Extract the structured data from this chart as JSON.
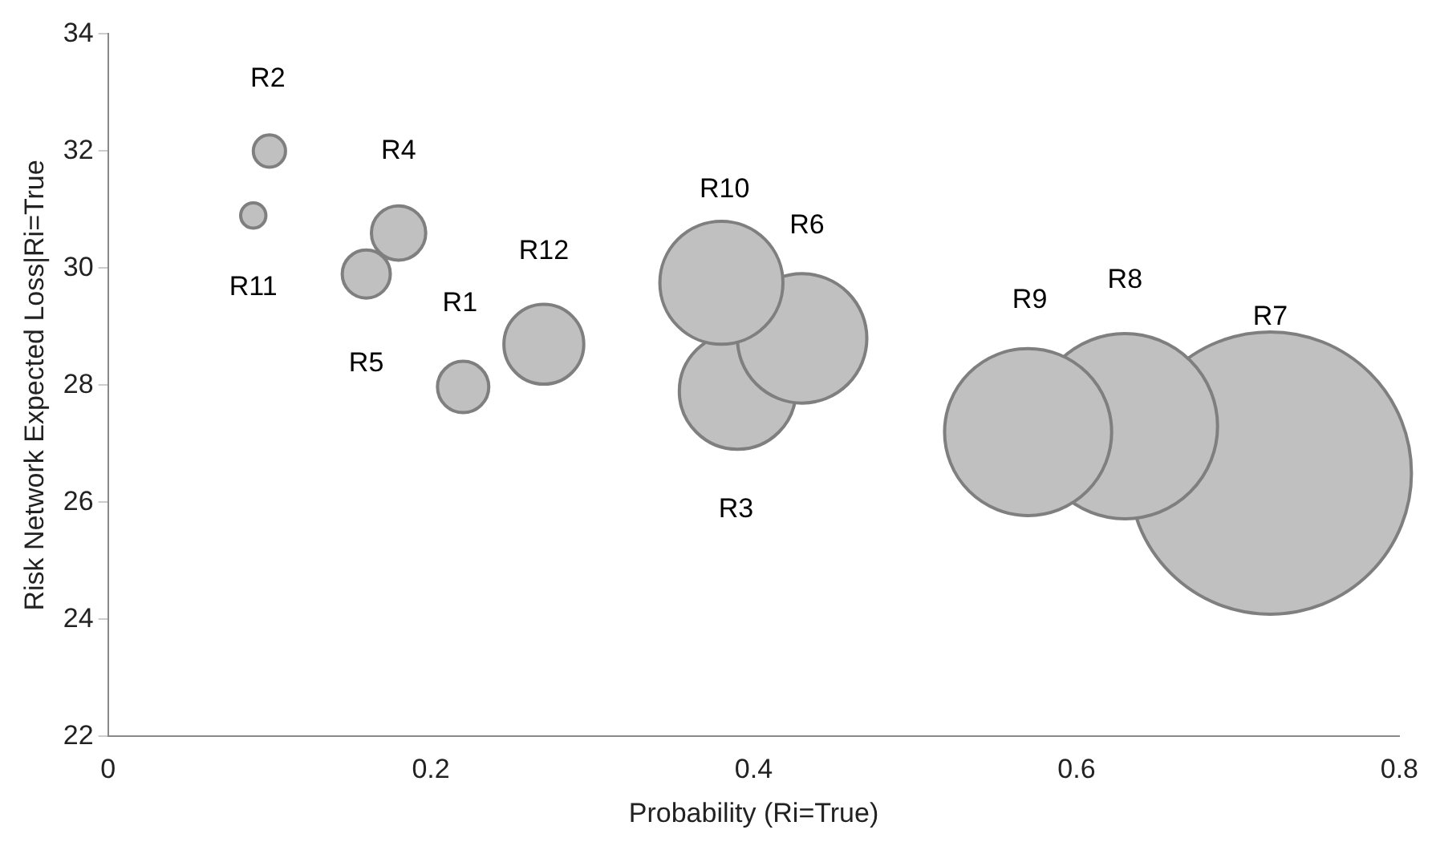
{
  "chart_data": {
    "type": "bubble",
    "xlabel": "Probability (Ri=True)",
    "ylabel": "Risk Network Expected Loss|Ri=True",
    "x": [
      0.22,
      0.1,
      0.39,
      0.18,
      0.16,
      0.43,
      0.72,
      0.63,
      0.57,
      0.38,
      0.09,
      0.27
    ],
    "values": [
      27.97,
      32.0,
      27.9,
      30.6,
      29.9,
      28.8,
      26.5,
      27.3,
      27.2,
      29.75,
      30.9,
      28.7
    ],
    "sizes": [
      0.033,
      0.013,
      0.17,
      0.037,
      0.029,
      0.21,
      1,
      0.43,
      0.35,
      0.19,
      0.008,
      0.08
    ],
    "color": "#c0c0c0",
    "xlim": [
      0,
      0.8
    ],
    "xticks": [
      {
        "value": 0,
        "label": "0"
      },
      0.2,
      0.4,
      0.6,
      0.8
    ],
    "ylim": [
      22,
      34
    ],
    "yticks": [
      22,
      24,
      26,
      28,
      30,
      32,
      34
    ],
    "grid": false,
    "legend": false,
    "annotations": [
      "R1",
      "R2",
      "R3",
      "R4",
      "R5",
      "R6",
      "R7",
      "R8",
      "R9",
      "R10",
      "R11",
      "R12"
    ]
  }
}
